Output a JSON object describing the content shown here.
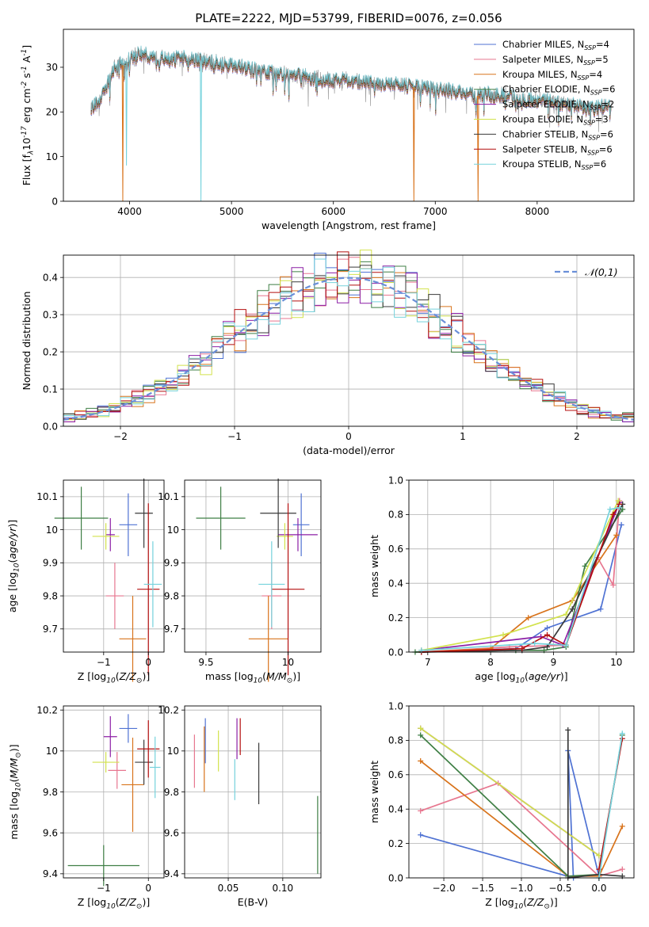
{
  "figure": {
    "title": "PLATE=2222, MJD=53799, FIBERID=0076, z=0.056"
  },
  "models": [
    {
      "name": "Chabrier MILES",
      "n": "4",
      "color": "#4f72d3"
    },
    {
      "name": "Salpeter MILES",
      "n": "5",
      "color": "#e7768f"
    },
    {
      "name": "Kroupa MILES",
      "n": "4",
      "color": "#d8731b"
    },
    {
      "name": "Chabrier ELODIE",
      "n": "6",
      "color": "#3f7f45"
    },
    {
      "name": "Salpeter ELODIE",
      "n": "2",
      "color": "#8c1ea5"
    },
    {
      "name": "Kroupa ELODIE",
      "n": "3",
      "color": "#d2e24c"
    },
    {
      "name": "Chabrier STELIB",
      "n": "6",
      "color": "#3a3a3a"
    },
    {
      "name": "Salpeter STELIB",
      "n": "6",
      "color": "#b40f0f"
    },
    {
      "name": "Kroupa STELIB",
      "n": "6",
      "color": "#75d2dc"
    }
  ],
  "legend_sub": "SSP",
  "chart_data": [
    {
      "id": "spectrum",
      "type": "line",
      "xlabel": "wavelength [Angstrom, rest frame]",
      "ylabel": "Flux [f$_\\lambda$10$^{-17}$ erg cm$^{-2}$ s$^{-1}$ A$^{-1}$]",
      "xlim": [
        3350,
        8950
      ],
      "ylim": [
        0,
        38.5
      ],
      "xticks": [
        4000,
        5000,
        6000,
        7000,
        8000
      ],
      "yticks": [
        0,
        10,
        20,
        30
      ],
      "legend": "top-right",
      "continuum": [
        [
          3620,
          21
        ],
        [
          3700,
          22
        ],
        [
          3780,
          26
        ],
        [
          3850,
          30
        ],
        [
          3900,
          31
        ],
        [
          3960,
          30
        ],
        [
          4000,
          32
        ],
        [
          4100,
          33
        ],
        [
          4200,
          32.5
        ],
        [
          4300,
          32
        ],
        [
          4400,
          31.5
        ],
        [
          4500,
          32
        ],
        [
          4600,
          32
        ],
        [
          4700,
          31.5
        ],
        [
          4800,
          31
        ],
        [
          4900,
          30.8
        ],
        [
          5000,
          30.5
        ],
        [
          5100,
          30
        ],
        [
          5200,
          29.5
        ],
        [
          5300,
          29
        ],
        [
          5400,
          28.8
        ],
        [
          5500,
          28.5
        ],
        [
          5600,
          28.2
        ],
        [
          5700,
          28
        ],
        [
          5800,
          27.5
        ],
        [
          5900,
          27.2
        ],
        [
          6000,
          27
        ],
        [
          6100,
          27
        ],
        [
          6200,
          26.8
        ],
        [
          6300,
          26.5
        ],
        [
          6400,
          26.3
        ],
        [
          6500,
          26
        ],
        [
          6600,
          26.5
        ],
        [
          6700,
          25.8
        ],
        [
          6800,
          25.5
        ],
        [
          6900,
          25.3
        ],
        [
          7000,
          25
        ],
        [
          7100,
          24.7
        ],
        [
          7200,
          24.5
        ],
        [
          7300,
          24
        ],
        [
          7400,
          23.5
        ],
        [
          7500,
          24
        ],
        [
          7600,
          23.5
        ],
        [
          7700,
          23.5
        ],
        [
          7800,
          23
        ],
        [
          7900,
          22.8
        ],
        [
          8000,
          22.5
        ],
        [
          8100,
          22.5
        ],
        [
          8200,
          22
        ],
        [
          8300,
          21.8
        ],
        [
          8400,
          21.5
        ],
        [
          8500,
          20.5
        ],
        [
          8600,
          21
        ],
        [
          8700,
          21.5
        ],
        [
          8730,
          21
        ]
      ],
      "dips": [
        {
          "x": 3933,
          "y": 0,
          "color": "#d8731b"
        },
        {
          "x": 3969,
          "y": 8,
          "color": "#75d2dc"
        },
        {
          "x": 4700,
          "y": 0,
          "color": "#75d2dc"
        },
        {
          "x": 6790,
          "y": 0,
          "color": "#d8731b"
        },
        {
          "x": 7420,
          "y": 0,
          "color": "#d8731b"
        }
      ]
    },
    {
      "id": "residuals",
      "type": "histogram",
      "xlabel": "(data-model)/error",
      "ylabel": "Normed distribution",
      "xlim": [
        -2.5,
        2.5
      ],
      "ylim": [
        0,
        0.46
      ],
      "xticks": [
        -2,
        -1,
        0,
        1,
        2
      ],
      "yticks": [
        0.0,
        0.1,
        0.2,
        0.3,
        0.4
      ],
      "yticklabels": [
        "0.0",
        "0.1",
        "0.2",
        "0.3",
        "0.4"
      ],
      "reference_label": "$\\mathcal{N}(0,1)$",
      "reference_color": "#6a8fd8",
      "bin_width": 0.1,
      "legend": "top-right"
    },
    {
      "id": "age-vs-Z",
      "type": "errorbar",
      "xlabel": "Z [log$_{10}$($Z/Z_\\odot$)]",
      "ylabel": "age  [log$_{10}$($age/yr$)]",
      "xlim": [
        -1.9,
        0.35
      ],
      "ylim": [
        9.63,
        10.15
      ],
      "xticks": [
        -1,
        0
      ],
      "yticks": [
        9.7,
        9.8,
        9.9,
        10.0,
        10.1
      ],
      "points": [
        {
          "x": -0.45,
          "xerr": 0.2,
          "y": 10.015,
          "yerr": 0.095,
          "color": "#4f72d3"
        },
        {
          "x": -0.75,
          "xerr": 0.2,
          "y": 9.8,
          "yerr": 0.1,
          "color": "#e7768f"
        },
        {
          "x": -0.35,
          "xerr": 0.3,
          "y": 9.67,
          "yerr": 0.13,
          "color": "#d8731b"
        },
        {
          "x": -1.5,
          "xerr": 0.6,
          "y": 10.035,
          "yerr": 0.095,
          "color": "#3f7f45"
        },
        {
          "x": -0.85,
          "xerr": 0.1,
          "y": 9.985,
          "yerr": 0.05,
          "color": "#8c1ea5"
        },
        {
          "x": -0.95,
          "xerr": 0.3,
          "y": 9.98,
          "yerr": 0.04,
          "color": "#d2e24c"
        },
        {
          "x": -0.1,
          "xerr": 0.2,
          "y": 10.05,
          "yerr": 0.105,
          "color": "#3a3a3a"
        },
        {
          "x": 0.0,
          "xerr": 0.25,
          "y": 9.82,
          "yerr": 0.26,
          "color": "#b40f0f"
        },
        {
          "x": 0.1,
          "xerr": 0.2,
          "y": 9.835,
          "yerr": 0.13,
          "color": "#75d2dc"
        }
      ]
    },
    {
      "id": "age-vs-mass",
      "type": "errorbar",
      "xlabel": "mass [log$_{10}$($M/M_\\odot$)]",
      "ylabel": "",
      "xlim": [
        9.37,
        10.2
      ],
      "ylim": [
        9.63,
        10.15
      ],
      "xticks": [
        9.5,
        10.0
      ],
      "yticks": [
        9.7,
        9.8,
        9.9,
        10.0,
        10.1
      ],
      "points": [
        {
          "x": 10.08,
          "xerr": 0.05,
          "y": 10.015,
          "yerr": 0.095,
          "color": "#4f72d3"
        },
        {
          "x": 9.9,
          "xerr": 0.06,
          "y": 9.8,
          "yerr": 0.1,
          "color": "#e7768f"
        },
        {
          "x": 9.88,
          "xerr": 0.12,
          "y": 9.67,
          "yerr": 0.13,
          "color": "#d8731b"
        },
        {
          "x": 9.59,
          "xerr": 0.15,
          "y": 10.035,
          "yerr": 0.095,
          "color": "#3f7f45"
        },
        {
          "x": 10.06,
          "xerr": 0.12,
          "y": 9.985,
          "yerr": 0.05,
          "color": "#8c1ea5"
        },
        {
          "x": 9.98,
          "xerr": 0.05,
          "y": 9.98,
          "yerr": 0.04,
          "color": "#d2e24c"
        },
        {
          "x": 9.94,
          "xerr": 0.11,
          "y": 10.05,
          "yerr": 0.105,
          "color": "#3a3a3a"
        },
        {
          "x": 10.0,
          "xerr": 0.1,
          "y": 9.82,
          "yerr": 0.26,
          "color": "#b40f0f"
        },
        {
          "x": 9.9,
          "xerr": 0.08,
          "y": 9.835,
          "yerr": 0.13,
          "color": "#75d2dc"
        }
      ]
    },
    {
      "id": "weight-vs-age",
      "type": "line",
      "xlabel": "age  [log$_{10}$($age/yr$)]",
      "ylabel": "mass weight",
      "xlim": [
        6.7,
        10.28
      ],
      "ylim": [
        0,
        1.0
      ],
      "xticks": [
        7,
        8,
        9,
        10
      ],
      "yticks": [
        0.0,
        0.2,
        0.4,
        0.6,
        0.8,
        1.0
      ],
      "yticklabels": [
        "0.0",
        "0.2",
        "0.4",
        "0.6",
        "0.8",
        "1.0"
      ],
      "series": [
        {
          "color": "#4f72d3",
          "points": [
            [
              6.9,
              0.0
            ],
            [
              8.4,
              0.02
            ],
            [
              8.9,
              0.14
            ],
            [
              9.75,
              0.25
            ],
            [
              10.08,
              0.74
            ]
          ]
        },
        {
          "color": "#e7768f",
          "points": [
            [
              6.9,
              0.0
            ],
            [
              8.3,
              0.03
            ],
            [
              9.2,
              0.04
            ],
            [
              9.7,
              0.55
            ],
            [
              9.95,
              0.39
            ],
            [
              10.05,
              0.88
            ]
          ]
        },
        {
          "color": "#d8731b",
          "points": [
            [
              6.9,
              0.0
            ],
            [
              8.0,
              0.02
            ],
            [
              8.6,
              0.2
            ],
            [
              9.3,
              0.3
            ],
            [
              10.0,
              0.68
            ]
          ]
        },
        {
          "color": "#3f7f45",
          "points": [
            [
              6.8,
              0.0
            ],
            [
              8.4,
              0.01
            ],
            [
              8.85,
              0.01
            ],
            [
              9.2,
              0.03
            ],
            [
              9.5,
              0.5
            ],
            [
              10.1,
              0.83
            ]
          ]
        },
        {
          "color": "#8c1ea5",
          "points": [
            [
              6.9,
              0.01
            ],
            [
              8.8,
              0.09
            ],
            [
              9.15,
              0.04
            ],
            [
              10.05,
              0.87
            ]
          ]
        },
        {
          "color": "#d2e24c",
          "points": [
            [
              6.9,
              0.01
            ],
            [
              8.2,
              0.1
            ],
            [
              9.2,
              0.22
            ],
            [
              10.03,
              0.88
            ]
          ]
        },
        {
          "color": "#3a3a3a",
          "points": [
            [
              6.9,
              0.0
            ],
            [
              8.5,
              0.01
            ],
            [
              8.9,
              0.03
            ],
            [
              9.3,
              0.25
            ],
            [
              10.1,
              0.86
            ]
          ]
        },
        {
          "color": "#b40f0f",
          "points": [
            [
              6.9,
              0.0
            ],
            [
              8.5,
              0.02
            ],
            [
              8.9,
              0.1
            ],
            [
              9.2,
              0.04
            ],
            [
              9.95,
              0.8
            ],
            [
              10.05,
              0.86
            ]
          ]
        },
        {
          "color": "#75d2dc",
          "points": [
            [
              6.9,
              0.01
            ],
            [
              8.7,
              0.05
            ],
            [
              9.2,
              0.04
            ],
            [
              9.9,
              0.83
            ],
            [
              10.05,
              0.84
            ]
          ]
        }
      ]
    },
    {
      "id": "mass-vs-Z",
      "type": "errorbar",
      "xlabel": "Z [log$_{10}$($Z/Z_\\odot$)]",
      "ylabel": "mass [log$_{10}$($M/M_\\odot$)]",
      "xlim": [
        -1.9,
        0.35
      ],
      "ylim": [
        9.38,
        10.22
      ],
      "xticks": [
        -1,
        0
      ],
      "yticks": [
        9.4,
        9.6,
        9.8,
        10.0,
        10.2
      ],
      "points": [
        {
          "x": -0.45,
          "xerr": 0.2,
          "y": 10.11,
          "yerr": 0.07,
          "color": "#4f72d3"
        },
        {
          "x": -0.7,
          "xerr": 0.2,
          "y": 9.905,
          "yerr": 0.09,
          "color": "#e7768f"
        },
        {
          "x": -0.35,
          "xerr": 0.25,
          "y": 9.835,
          "yerr": 0.23,
          "color": "#d8731b"
        },
        {
          "x": -1.0,
          "xerr": 0.8,
          "y": 9.44,
          "yerr": 0.1,
          "color": "#3f7f45"
        },
        {
          "x": -0.85,
          "xerr": 0.15,
          "y": 10.07,
          "yerr": 0.1,
          "color": "#8c1ea5"
        },
        {
          "x": -0.95,
          "xerr": 0.3,
          "y": 9.945,
          "yerr": 0.05,
          "color": "#d2e24c"
        },
        {
          "x": -0.1,
          "xerr": 0.2,
          "y": 9.945,
          "yerr": 0.11,
          "color": "#3a3a3a"
        },
        {
          "x": 0.0,
          "xerr": 0.25,
          "y": 10.01,
          "yerr": 0.14,
          "color": "#b40f0f"
        },
        {
          "x": 0.15,
          "xerr": 0.12,
          "y": 9.92,
          "yerr": 0.15,
          "color": "#75d2dc"
        }
      ]
    },
    {
      "id": "mass-vs-ebv",
      "type": "errorbar",
      "xlabel": "E(B-V)",
      "ylabel": "",
      "xlim": [
        0.01,
        0.135
      ],
      "ylim": [
        9.38,
        10.22
      ],
      "xticks": [
        0.05,
        0.1
      ],
      "xticklabels": [
        "0.05",
        "0.10"
      ],
      "yticks": [
        9.4,
        9.6,
        9.8,
        10.0,
        10.2
      ],
      "points": [
        {
          "x": 0.029,
          "xerr": 0,
          "y": 10.05,
          "yerr": 0.11,
          "color": "#4f72d3"
        },
        {
          "x": 0.019,
          "xerr": 0,
          "y": 9.95,
          "yerr": 0.13,
          "color": "#e7768f"
        },
        {
          "x": 0.028,
          "xerr": 0,
          "y": 9.96,
          "yerr": 0.16,
          "color": "#d8731b"
        },
        {
          "x": 0.132,
          "xerr": 0,
          "y": 9.59,
          "yerr": 0.19,
          "color": "#3f7f45"
        },
        {
          "x": 0.058,
          "xerr": 0,
          "y": 10.06,
          "yerr": 0.1,
          "color": "#8c1ea5"
        },
        {
          "x": 0.041,
          "xerr": 0,
          "y": 10.0,
          "yerr": 0.1,
          "color": "#d2e24c"
        },
        {
          "x": 0.078,
          "xerr": 0,
          "y": 9.89,
          "yerr": 0.15,
          "color": "#3a3a3a"
        },
        {
          "x": 0.061,
          "xerr": 0,
          "y": 10.07,
          "yerr": 0.09,
          "color": "#b40f0f"
        },
        {
          "x": 0.056,
          "xerr": 0,
          "y": 9.86,
          "yerr": 0.1,
          "color": "#75d2dc"
        }
      ]
    },
    {
      "id": "weight-vs-Z",
      "type": "line",
      "xlabel": "Z [log$_{10}$($Z/Z_\\odot$)]",
      "ylabel": "mass weight",
      "xlim": [
        -2.45,
        0.45
      ],
      "ylim": [
        0,
        1.0
      ],
      "xticks": [
        -2.0,
        -1.5,
        -1.0,
        -0.5,
        0.0
      ],
      "xticklabels": [
        "−2.0",
        "−1.5",
        "−1.0",
        "−0.5",
        "0.0"
      ],
      "yticks": [
        0.0,
        0.2,
        0.4,
        0.6,
        0.8,
        1.0
      ],
      "yticklabels": [
        "0.0",
        "0.2",
        "0.4",
        "0.6",
        "0.8",
        "1.0"
      ],
      "series": [
        {
          "color": "#4f72d3",
          "points": [
            [
              -2.3,
              0.25
            ],
            [
              -0.33,
              0.0
            ],
            [
              -0.4,
              0.74
            ],
            [
              0.0,
              0.01
            ]
          ]
        },
        {
          "color": "#e7768f",
          "points": [
            [
              -2.3,
              0.39
            ],
            [
              -1.3,
              0.55
            ],
            [
              0.0,
              0.01
            ],
            [
              0.3,
              0.05
            ]
          ]
        },
        {
          "color": "#d8731b",
          "points": [
            [
              -2.3,
              0.68
            ],
            [
              -0.4,
              0.01
            ],
            [
              0.0,
              0.01
            ],
            [
              0.3,
              0.3
            ]
          ]
        },
        {
          "color": "#3f7f45",
          "points": [
            [
              -2.3,
              0.83
            ],
            [
              -0.4,
              0.01
            ],
            [
              0.0,
              0.02
            ],
            [
              0.3,
              0.83
            ]
          ]
        },
        {
          "color": "#8c1ea5",
          "points": [
            [
              -2.3,
              0.87
            ],
            [
              0.0,
              0.13
            ]
          ]
        },
        {
          "color": "#d2e24c",
          "points": [
            [
              -2.3,
              0.87
            ],
            [
              0.0,
              0.13
            ]
          ]
        },
        {
          "color": "#3a3a3a",
          "points": [
            [
              -0.4,
              0.86
            ],
            [
              -0.4,
              0.0
            ],
            [
              0.0,
              0.02
            ],
            [
              0.3,
              0.01
            ]
          ]
        },
        {
          "color": "#b40f0f",
          "points": [
            [
              0.0,
              0.05
            ],
            [
              0.3,
              0.81
            ]
          ]
        },
        {
          "color": "#75d2dc",
          "points": [
            [
              0.0,
              0.0
            ],
            [
              0.3,
              0.84
            ]
          ]
        }
      ]
    }
  ]
}
